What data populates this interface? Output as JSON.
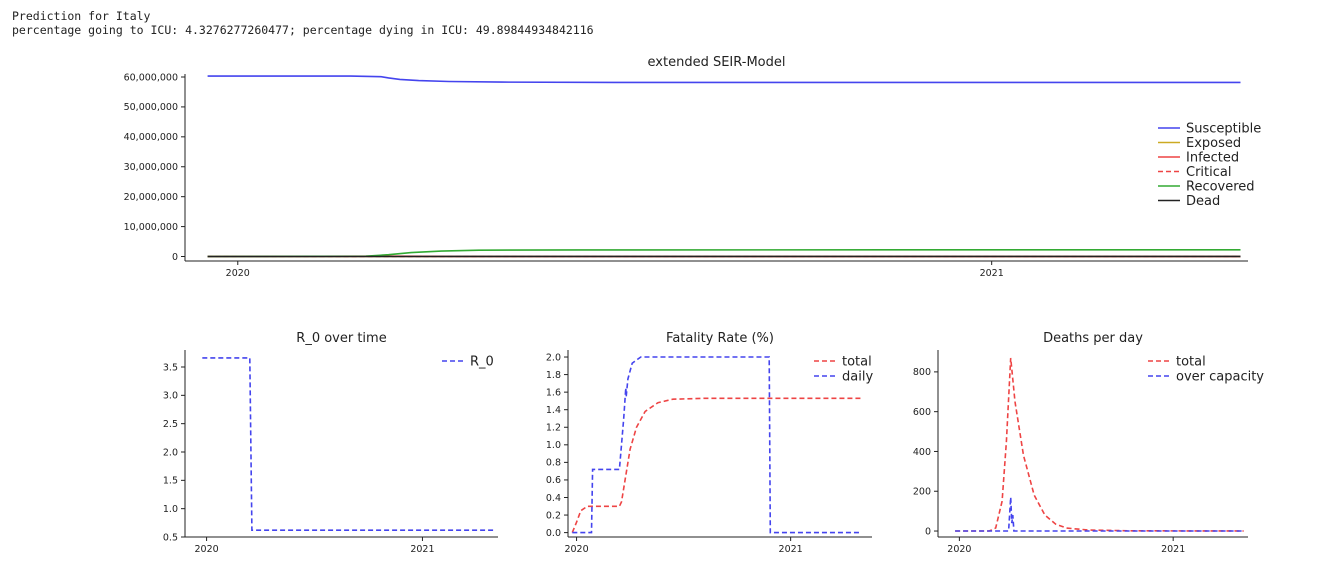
{
  "header": {
    "line1": "Prediction for Italy",
    "line2": "percentage going to ICU: 4.3276277260477; percentage dying in ICU: 49.89844934842116"
  },
  "chart_data": [
    {
      "id": "seir",
      "type": "line",
      "title": "extended SEIR-Model",
      "x_ticks": [
        {
          "t": 0.0,
          "label": "2020"
        },
        {
          "t": 1.0,
          "label": "2021"
        }
      ],
      "x_range": [
        -0.07,
        1.34
      ],
      "y_range": [
        -1500000,
        61000000
      ],
      "y_ticks": [
        {
          "v": 0,
          "label": "0"
        },
        {
          "v": 10000000,
          "label": "10,000,000"
        },
        {
          "v": 20000000,
          "label": "20,000,000"
        },
        {
          "v": 30000000,
          "label": "30,000,000"
        },
        {
          "v": 40000000,
          "label": "40,000,000"
        },
        {
          "v": 50000000,
          "label": "50,000,000"
        },
        {
          "v": 60000000,
          "label": "60,000,000"
        }
      ],
      "legend_position": "right",
      "series": [
        {
          "name": "Susceptible",
          "color": "#4444ee",
          "dash": "solid",
          "points": [
            [
              -0.04,
              60300000
            ],
            [
              0.15,
              60300000
            ],
            [
              0.19,
              60100000
            ],
            [
              0.2,
              59700000
            ],
            [
              0.215,
              59200000
            ],
            [
              0.24,
              58800000
            ],
            [
              0.28,
              58500000
            ],
            [
              0.35,
              58300000
            ],
            [
              0.5,
              58200000
            ],
            [
              1.33,
              58200000
            ]
          ]
        },
        {
          "name": "Exposed",
          "color": "#ccaa22",
          "dash": "solid",
          "points": [
            [
              -0.04,
              0
            ],
            [
              0.2,
              40000
            ],
            [
              0.24,
              20000
            ],
            [
              1.33,
              0
            ]
          ]
        },
        {
          "name": "Infected",
          "color": "#ee4444",
          "dash": "solid",
          "points": [
            [
              -0.04,
              0
            ],
            [
              0.2,
              100000
            ],
            [
              0.25,
              60000
            ],
            [
              0.3,
              20000
            ],
            [
              1.33,
              0
            ]
          ]
        },
        {
          "name": "Critical",
          "color": "#ee4444",
          "dash": "dashed",
          "points": [
            [
              -0.04,
              0
            ],
            [
              1.33,
              0
            ]
          ]
        },
        {
          "name": "Recovered",
          "color": "#33aa33",
          "dash": "solid",
          "points": [
            [
              -0.04,
              0
            ],
            [
              0.17,
              100000
            ],
            [
              0.2,
              600000
            ],
            [
              0.23,
              1300000
            ],
            [
              0.27,
              1800000
            ],
            [
              0.32,
              2100000
            ],
            [
              0.45,
              2200000
            ],
            [
              1.33,
              2250000
            ]
          ]
        },
        {
          "name": "Dead",
          "color": "#222222",
          "dash": "solid",
          "points": [
            [
              -0.04,
              0
            ],
            [
              0.2,
              10000
            ],
            [
              0.3,
              30000
            ],
            [
              1.33,
              35000
            ]
          ]
        }
      ]
    },
    {
      "id": "r0",
      "type": "line",
      "title": "R_0 over time",
      "x_ticks": [
        {
          "t": 0.0,
          "label": "2020"
        },
        {
          "t": 1.0,
          "label": "2021"
        }
      ],
      "x_range": [
        -0.1,
        1.35
      ],
      "y_range": [
        0.5,
        3.8
      ],
      "y_ticks": [
        {
          "v": 0.5,
          "label": "0.5"
        },
        {
          "v": 1.0,
          "label": "1.0"
        },
        {
          "v": 1.5,
          "label": "1.5"
        },
        {
          "v": 2.0,
          "label": "2.0"
        },
        {
          "v": 2.5,
          "label": "2.5"
        },
        {
          "v": 3.0,
          "label": "3.0"
        },
        {
          "v": 3.5,
          "label": "3.5"
        }
      ],
      "legend_position": "top-right",
      "series": [
        {
          "name": "R_0",
          "color": "#4444ee",
          "dash": "dashed",
          "points": [
            [
              -0.02,
              3.66
            ],
            [
              0.2,
              3.66
            ],
            [
              0.21,
              0.62
            ],
            [
              1.33,
              0.62
            ]
          ]
        }
      ]
    },
    {
      "id": "fatality",
      "type": "line",
      "title": "Fatality Rate (%)",
      "x_ticks": [
        {
          "t": 0.0,
          "label": "2020"
        },
        {
          "t": 1.0,
          "label": "2021"
        }
      ],
      "x_range": [
        -0.04,
        1.38
      ],
      "y_range": [
        -0.05,
        2.08
      ],
      "y_ticks": [
        {
          "v": 0.0,
          "label": "0.0"
        },
        {
          "v": 0.2,
          "label": "0.2"
        },
        {
          "v": 0.4,
          "label": "0.4"
        },
        {
          "v": 0.6,
          "label": "0.6"
        },
        {
          "v": 0.8,
          "label": "0.8"
        },
        {
          "v": 1.0,
          "label": "1.0"
        },
        {
          "v": 1.2,
          "label": "1.2"
        },
        {
          "v": 1.4,
          "label": "1.4"
        },
        {
          "v": 1.6,
          "label": "1.6"
        },
        {
          "v": 1.8,
          "label": "1.8"
        },
        {
          "v": 2.0,
          "label": "2.0"
        }
      ],
      "legend_position": "top-right",
      "series": [
        {
          "name": "total",
          "color": "#ee4444",
          "dash": "dashed",
          "points": [
            [
              -0.02,
              0
            ],
            [
              0.0,
              0.12
            ],
            [
              0.02,
              0.25
            ],
            [
              0.05,
              0.3
            ],
            [
              0.2,
              0.3
            ],
            [
              0.21,
              0.35
            ],
            [
              0.23,
              0.65
            ],
            [
              0.25,
              0.95
            ],
            [
              0.28,
              1.2
            ],
            [
              0.32,
              1.38
            ],
            [
              0.38,
              1.48
            ],
            [
              0.45,
              1.52
            ],
            [
              0.6,
              1.53
            ],
            [
              1.33,
              1.53
            ]
          ]
        },
        {
          "name": "daily",
          "color": "#4444ee",
          "dash": "dashed",
          "points": [
            [
              -0.02,
              0
            ],
            [
              0.07,
              0
            ],
            [
              0.075,
              0.72
            ],
            [
              0.2,
              0.72
            ],
            [
              0.21,
              1.0
            ],
            [
              0.22,
              1.3
            ],
            [
              0.23,
              1.65
            ],
            [
              0.232,
              1.55
            ],
            [
              0.24,
              1.75
            ],
            [
              0.26,
              1.93
            ],
            [
              0.3,
              2.0
            ],
            [
              0.9,
              2.0
            ],
            [
              0.905,
              0
            ],
            [
              1.33,
              0
            ]
          ]
        }
      ]
    },
    {
      "id": "deaths",
      "type": "line",
      "title": "Deaths per day",
      "x_ticks": [
        {
          "t": 0.0,
          "label": "2020"
        },
        {
          "t": 1.0,
          "label": "2021"
        }
      ],
      "x_range": [
        -0.1,
        1.35
      ],
      "y_range": [
        -30,
        910
      ],
      "y_ticks": [
        {
          "v": 0,
          "label": "0"
        },
        {
          "v": 200,
          "label": "200"
        },
        {
          "v": 400,
          "label": "400"
        },
        {
          "v": 600,
          "label": "600"
        },
        {
          "v": 800,
          "label": "800"
        }
      ],
      "legend_position": "top-right",
      "series": [
        {
          "name": "total",
          "color": "#ee4444",
          "dash": "dashed",
          "points": [
            [
              -0.02,
              0
            ],
            [
              0.14,
              0
            ],
            [
              0.17,
              15
            ],
            [
              0.2,
              150
            ],
            [
              0.22,
              450
            ],
            [
              0.24,
              870
            ],
            [
              0.26,
              650
            ],
            [
              0.3,
              380
            ],
            [
              0.35,
              180
            ],
            [
              0.4,
              80
            ],
            [
              0.45,
              35
            ],
            [
              0.5,
              15
            ],
            [
              0.6,
              5
            ],
            [
              0.8,
              1
            ],
            [
              1.33,
              0
            ]
          ]
        },
        {
          "name": "over capacity",
          "color": "#4444ee",
          "dash": "dashed",
          "points": [
            [
              -0.02,
              0
            ],
            [
              0.23,
              0
            ],
            [
              0.24,
              170
            ],
            [
              0.245,
              40
            ],
            [
              0.25,
              80
            ],
            [
              0.255,
              0
            ],
            [
              1.33,
              0
            ]
          ]
        }
      ]
    }
  ]
}
